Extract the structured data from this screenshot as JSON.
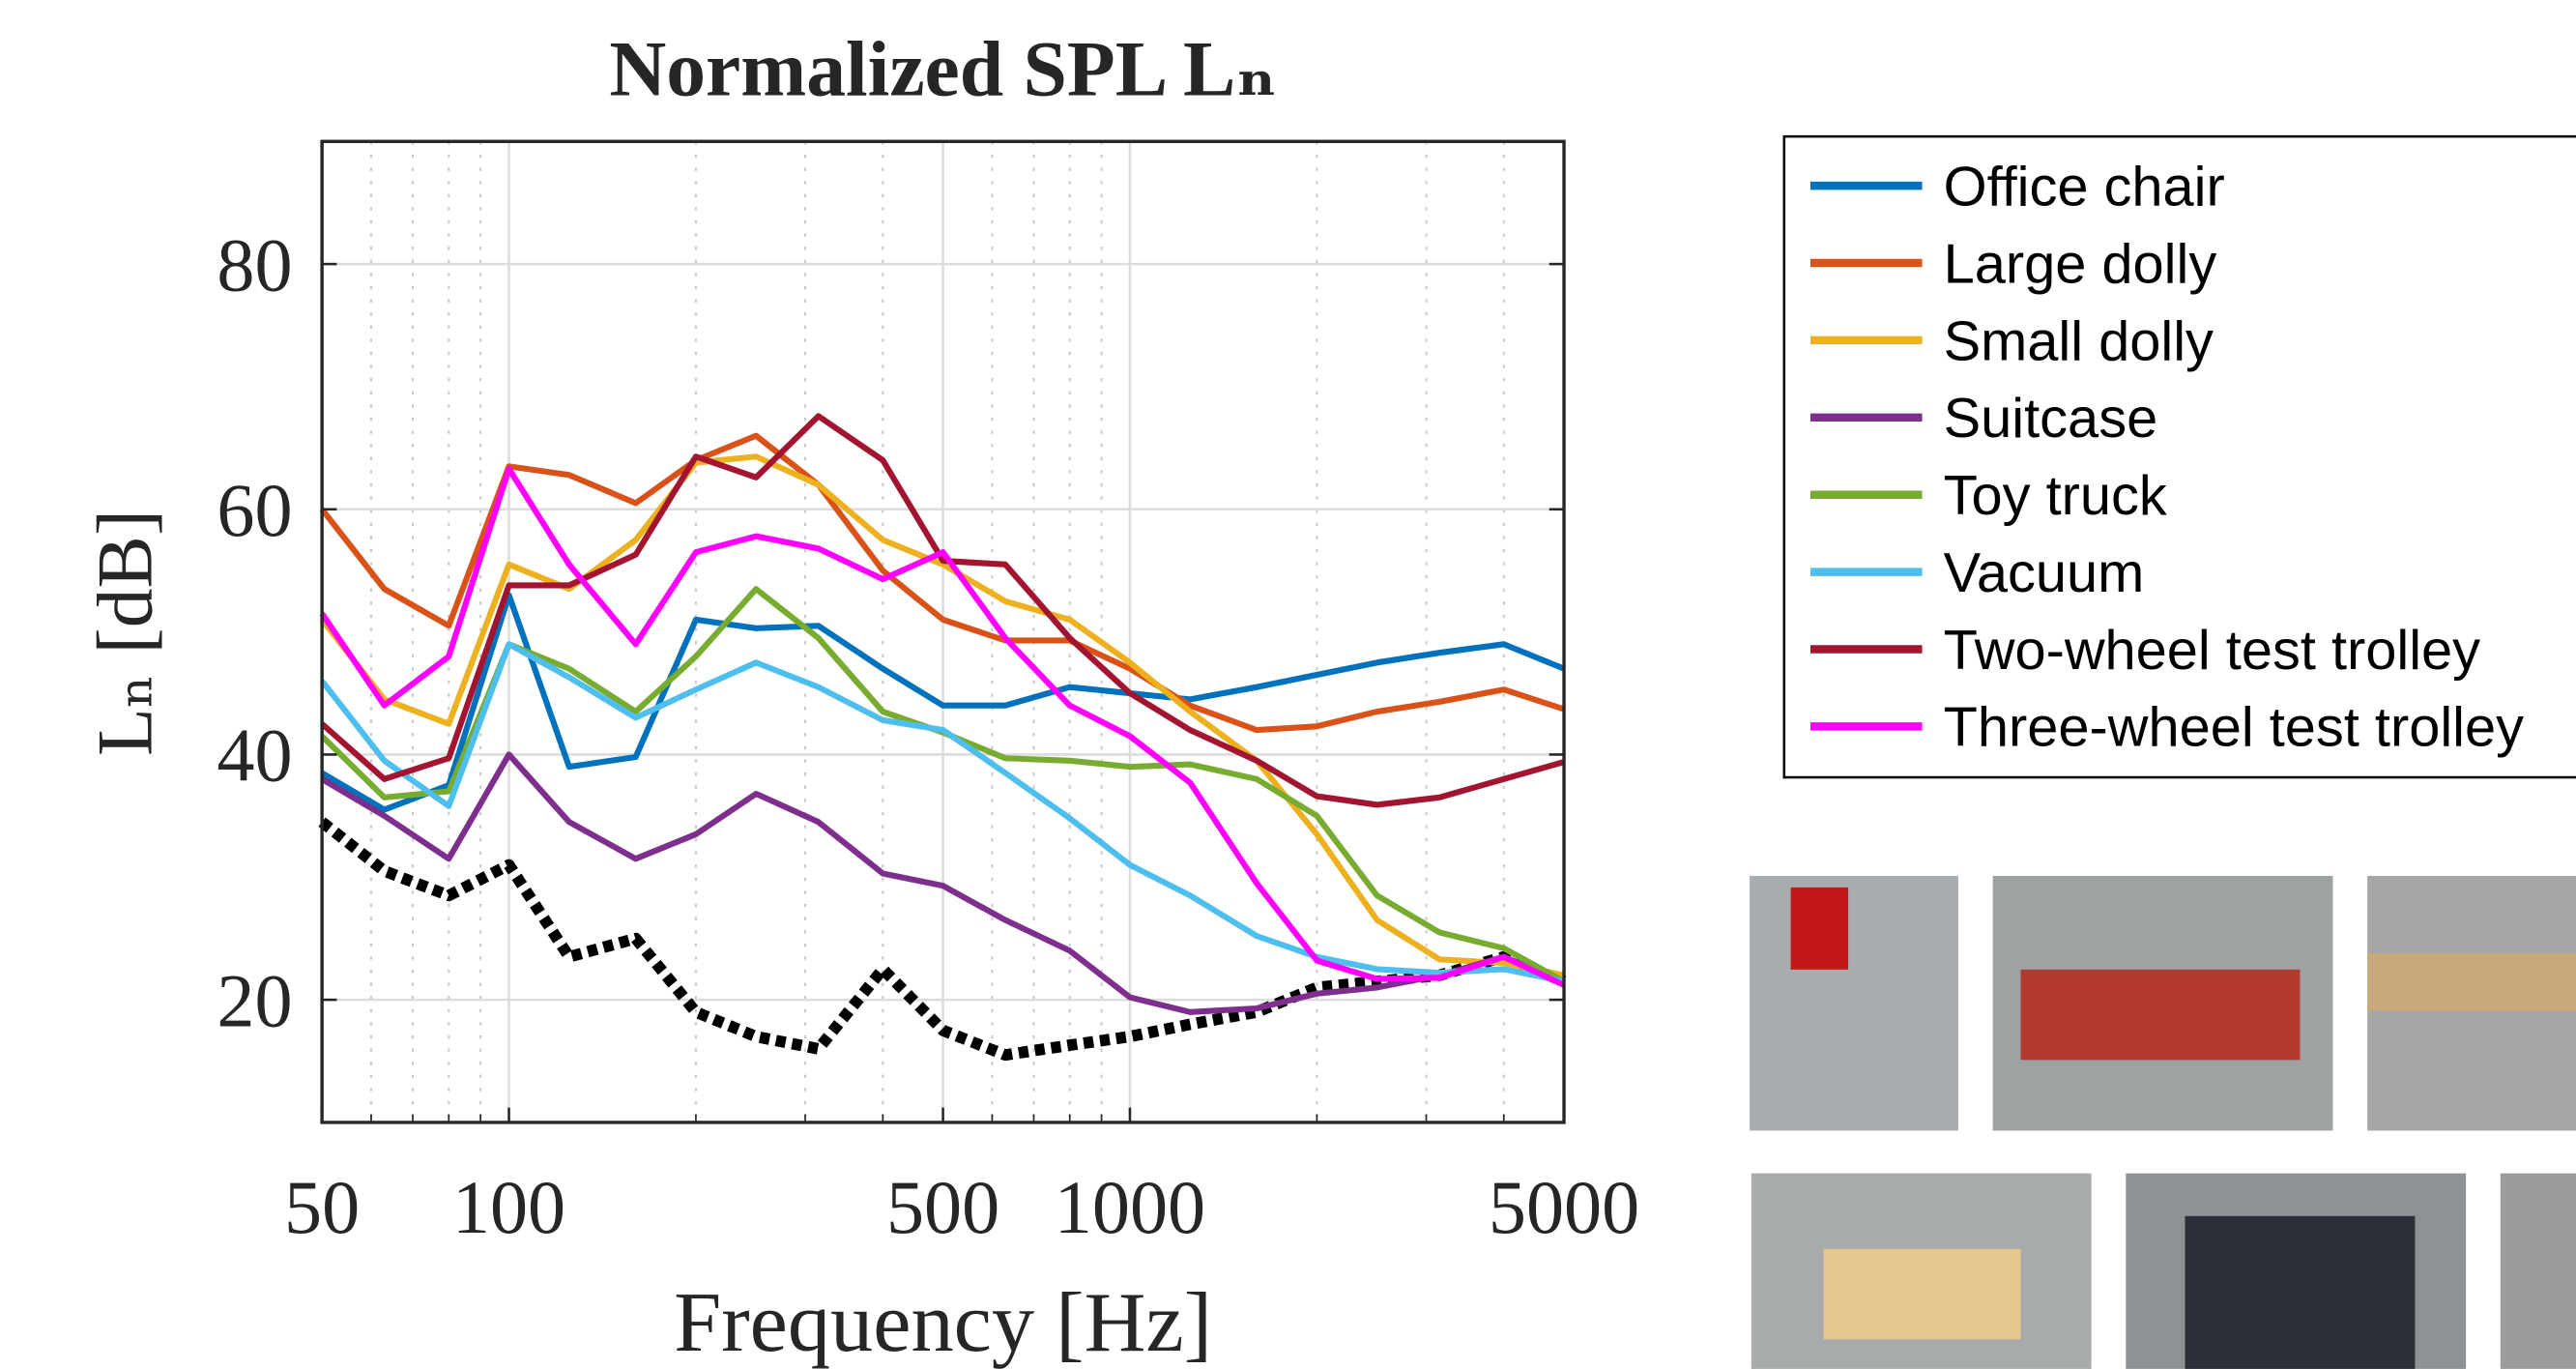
{
  "chart_data": {
    "type": "line",
    "title": "Normalized SPL Lₙ",
    "xlabel": "Frequency [Hz]",
    "ylabel": "Lₙ [dB]",
    "xscale": "log",
    "grid": true,
    "xlim": [
      50,
      5000
    ],
    "ylim": [
      10,
      90
    ],
    "xticks": [
      50,
      100,
      500,
      1000,
      5000
    ],
    "xminorticks": [
      60,
      70,
      80,
      90,
      200,
      300,
      400,
      600,
      700,
      800,
      900,
      2000,
      3000,
      4000
    ],
    "yticks": [
      20,
      40,
      60,
      80
    ],
    "x": [
      50,
      63,
      80,
      100,
      125,
      160,
      200,
      250,
      315,
      400,
      500,
      630,
      800,
      1000,
      1250,
      1600,
      2000,
      2500,
      3150,
      4000,
      5000
    ],
    "series": [
      {
        "name": "Office chair",
        "color": "#0072bd",
        "values": [
          38.5,
          35.5,
          37.5,
          53,
          39,
          39.8,
          51,
          50.3,
          50.5,
          47,
          44,
          44,
          45.5,
          45,
          44.5,
          45.5,
          46.5,
          47.5,
          48.3,
          49,
          47
        ]
      },
      {
        "name": "Large dolly",
        "color": "#d95319",
        "values": [
          60,
          53.5,
          50.5,
          63.5,
          62.8,
          60.5,
          64,
          66,
          62,
          55,
          51,
          49.3,
          49.3,
          47,
          44,
          42,
          42.3,
          43.5,
          44.3,
          45.3,
          43.7
        ]
      },
      {
        "name": "Small dolly",
        "color": "#edb120",
        "values": [
          51,
          44.5,
          42.5,
          55.5,
          53.5,
          57.5,
          63.8,
          64.3,
          62,
          57.5,
          55.5,
          52.5,
          51,
          47.5,
          43.5,
          39.5,
          33.5,
          26.5,
          23.3,
          23,
          22
        ]
      },
      {
        "name": "Suitcase",
        "color": "#7e2f8e",
        "values": [
          38,
          35,
          31.5,
          40,
          34.5,
          31.5,
          33.5,
          36.8,
          34.5,
          30.3,
          29.3,
          26.5,
          24,
          20.2,
          19,
          19.3,
          20.5,
          21,
          22,
          23.5,
          21.5
        ]
      },
      {
        "name": "Toy truck",
        "color": "#77ac30",
        "values": [
          41.5,
          36.5,
          37,
          49,
          47,
          43.5,
          48,
          53.5,
          49.5,
          43.5,
          41.8,
          39.7,
          39.5,
          39,
          39.2,
          38,
          35,
          28.5,
          25.5,
          24.2,
          21.5
        ]
      },
      {
        "name": "Vacuum",
        "color": "#4dbeee",
        "values": [
          46,
          39.5,
          35.8,
          49,
          46.3,
          43,
          45.3,
          47.5,
          45.5,
          42.8,
          42,
          38.5,
          34.8,
          31,
          28.5,
          25.2,
          23.5,
          22.5,
          22.2,
          22.5,
          21.5
        ]
      },
      {
        "name": "Two-wheel test trolley",
        "color": "#a2142f",
        "values": [
          42.5,
          38,
          39.7,
          53.8,
          53.8,
          56.3,
          64.3,
          62.6,
          67.6,
          64,
          55.8,
          55.5,
          49.5,
          45,
          42,
          39.5,
          36.6,
          35.9,
          36.5,
          38,
          39.4
        ]
      },
      {
        "name": "Three-wheel test trolley",
        "color": "#ff00ff",
        "values": [
          51.5,
          44,
          48,
          63.3,
          55.5,
          49,
          56.5,
          57.8,
          56.8,
          54.3,
          56.5,
          49.5,
          44,
          41.5,
          37.7,
          29.5,
          23.2,
          21.7,
          21.8,
          23.5,
          21.2
        ]
      },
      {
        "color": "#000000",
        "dashed": true,
        "values": [
          34.5,
          30.5,
          28.5,
          31,
          23.5,
          25,
          19,
          17,
          16,
          22.5,
          17.5,
          15.5,
          16.3,
          17,
          18,
          19,
          21,
          21.5,
          22,
          23.5,
          21.5
        ]
      }
    ]
  }
}
